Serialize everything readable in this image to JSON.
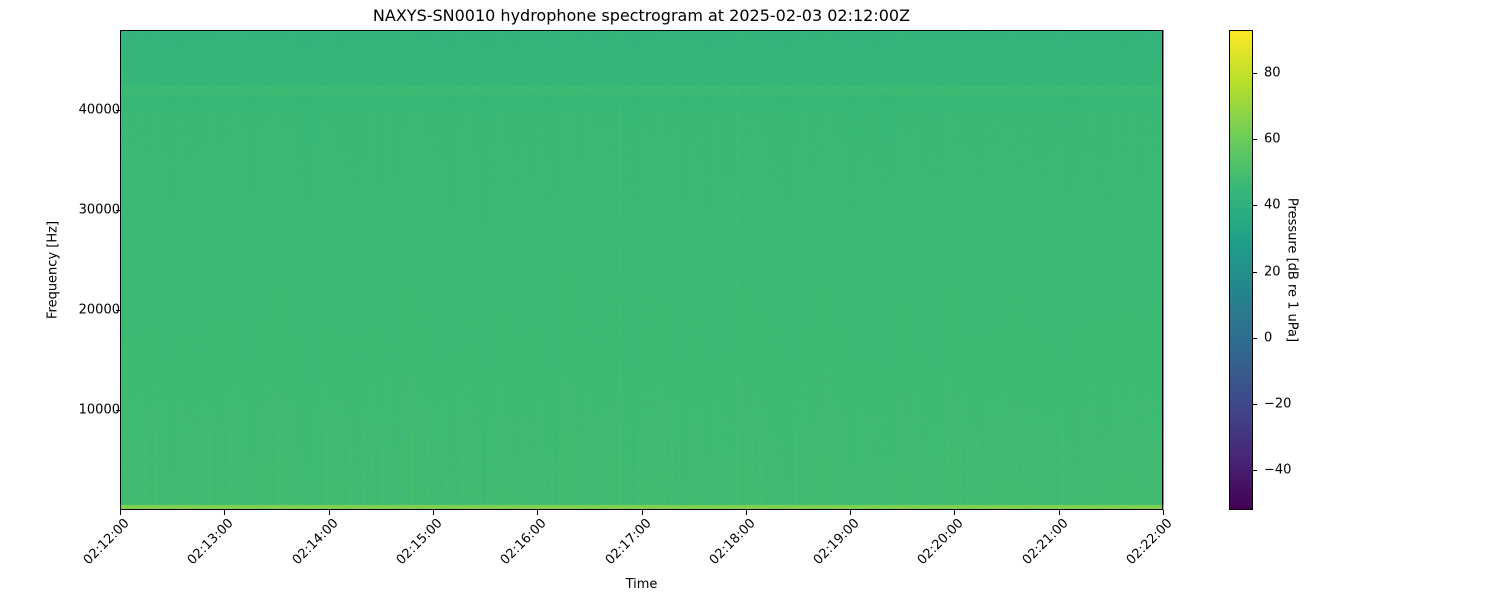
{
  "chart_data": {
    "type": "heatmap",
    "title": "NAXYS-SN0010 hydrophone spectrogram at 2025-02-03 02:12:00Z",
    "xlabel": "Time",
    "ylabel": "Frequency [Hz]",
    "xlim": [
      "02:12:00",
      "02:22:00"
    ],
    "ylim": [
      0,
      48000
    ],
    "x_ticks": [
      "02:12:00",
      "02:13:00",
      "02:14:00",
      "02:15:00",
      "02:16:00",
      "02:17:00",
      "02:18:00",
      "02:19:00",
      "02:20:00",
      "02:21:00",
      "02:22:00"
    ],
    "y_ticks": [
      10000,
      20000,
      30000,
      40000
    ],
    "colormap": "viridis",
    "colorbar": {
      "label": "Pressure [dB re 1 uPa]",
      "range": [
        -52,
        93
      ],
      "ticks": [
        -40,
        -20,
        0,
        20,
        40,
        60,
        80
      ]
    },
    "approx_levels_db": {
      "below_500_hz": 65,
      "500_to_15000_hz": 48,
      "15000_to_40000_hz": 46,
      "near_42000_hz_line": 47,
      "above_43000_hz": 43
    },
    "grid": false
  }
}
